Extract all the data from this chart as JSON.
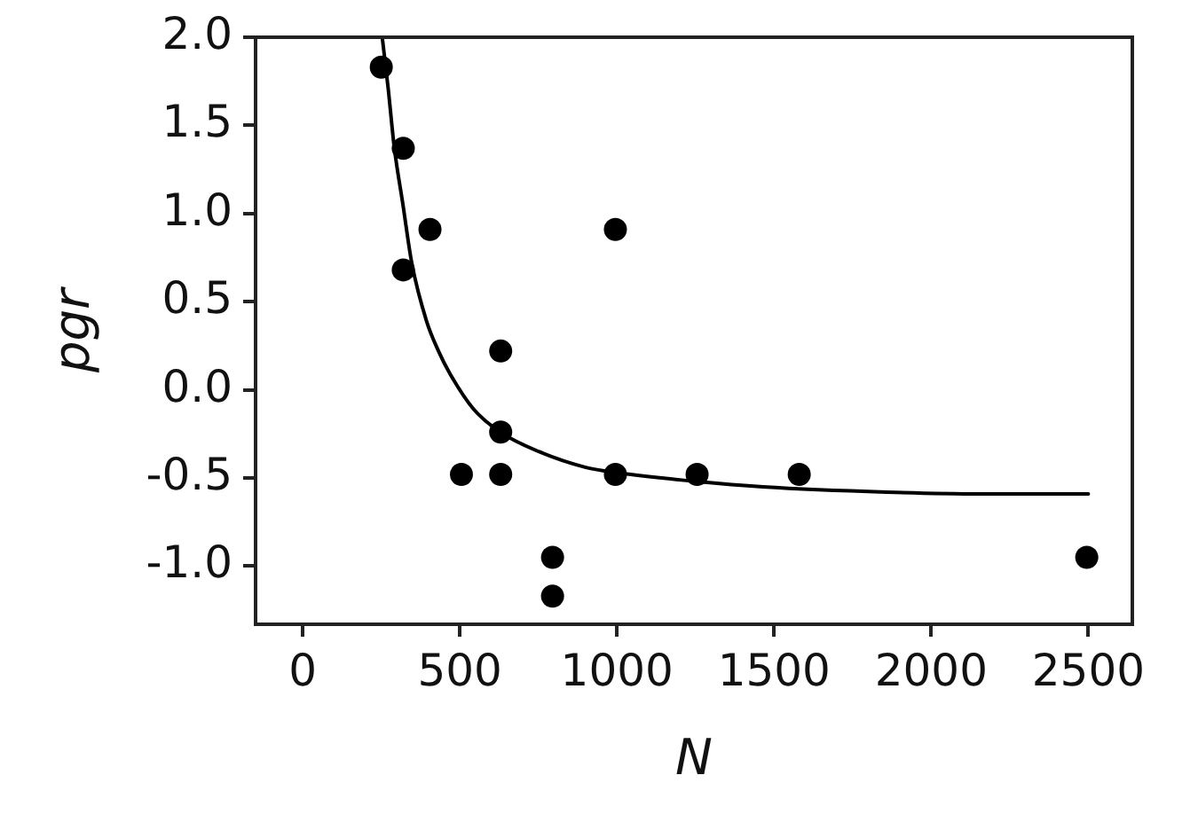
{
  "chart_data": {
    "type": "scatter",
    "xlabel": "N",
    "ylabel": "pgr",
    "xlim": [
      -150,
      2640
    ],
    "xticks": [
      0,
      500,
      1000,
      1500,
      2000,
      2500
    ],
    "ylim": [
      -1.33,
      2.0
    ],
    "yticks": [
      {
        "value": 2,
        "label": "2.0"
      },
      1.5,
      {
        "value": 1,
        "label": "1.0"
      },
      0.5,
      {
        "value": 0,
        "label": "0.0"
      },
      -0.5,
      {
        "value": -1,
        "label": "-1.0"
      }
    ],
    "grid": false,
    "legend": false,
    "series": [
      {
        "type": "scatter",
        "color": "#000000",
        "marker": "circle",
        "x": [
          250,
          320,
          405,
          320,
          630,
          630,
          505,
          630,
          995,
          995,
          1255,
          1580,
          795,
          795,
          2495
        ],
        "values": [
          1.83,
          1.37,
          0.91,
          0.68,
          0.22,
          -0.24,
          -0.48,
          -0.48,
          0.91,
          -0.48,
          -0.48,
          -0.48,
          -0.95,
          -1.17,
          -0.95
        ]
      },
      {
        "type": "line",
        "color": "#000000",
        "marker": "none",
        "line_style": "solid",
        "x": [
          253,
          272,
          291,
          319,
          347,
          394,
          432,
          469,
          544,
          629,
          751,
          901,
          1000,
          1254,
          1464,
          1858,
          2157,
          2500
        ],
        "values": [
          2.0,
          1.71,
          1.38,
          1.05,
          0.72,
          0.39,
          0.22,
          0.09,
          -0.11,
          -0.24,
          -0.35,
          -0.44,
          -0.47,
          -0.52,
          -0.55,
          -0.58,
          -0.59,
          -0.59
        ]
      }
    ]
  }
}
